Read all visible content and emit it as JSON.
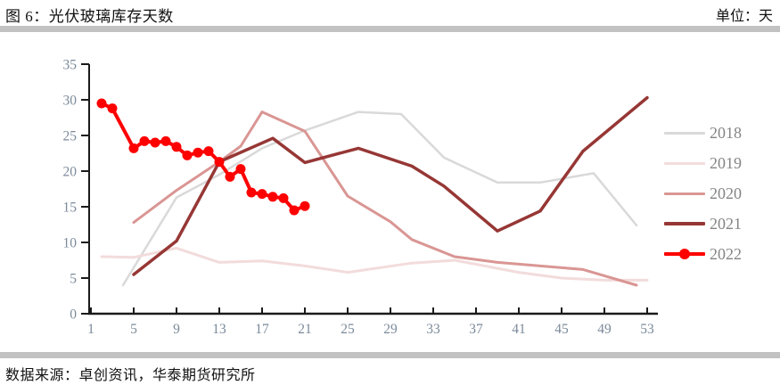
{
  "header": {
    "title": "图 6：光伏玻璃库存天数",
    "unit": "单位：天"
  },
  "footer": {
    "source": "数据来源：卓创资讯，华泰期货研究所"
  },
  "colors": {
    "divider": "#c2c2c2",
    "axis": "#1a1a1a",
    "axis_tick_label": "#7b8a9a",
    "legend_label": "#848484"
  },
  "chart_data": {
    "type": "line",
    "title": "光伏玻璃库存天数",
    "xlabel": "",
    "ylabel": "天",
    "x_axis": {
      "range": [
        1,
        53
      ],
      "tick_labels": [
        1,
        5,
        9,
        13,
        17,
        21,
        25,
        29,
        33,
        37,
        41,
        45,
        49,
        53
      ]
    },
    "y_axis": {
      "range": [
        0,
        35
      ],
      "tick_labels": [
        0,
        5,
        10,
        15,
        20,
        25,
        30,
        35
      ]
    },
    "grid": false,
    "legend_position": "right",
    "series": [
      {
        "name": "2018",
        "color": "#d9d9d9",
        "width": 2.5,
        "marker": false,
        "x": [
          4,
          9,
          13,
          17,
          21,
          26,
          30,
          34,
          39,
          43,
          48,
          52
        ],
        "values": [
          4.0,
          16.3,
          19.5,
          23.2,
          25.7,
          28.3,
          28.0,
          21.9,
          18.4,
          18.4,
          19.7,
          12.4
        ]
      },
      {
        "name": "2019",
        "color": "#f2dcdb",
        "width": 3,
        "marker": false,
        "x": [
          2,
          5,
          9,
          13,
          17,
          21,
          25,
          31,
          35,
          41,
          45,
          49,
          53
        ],
        "values": [
          8.0,
          7.9,
          9.2,
          7.2,
          7.4,
          6.7,
          5.8,
          7.1,
          7.5,
          5.8,
          5.0,
          4.7,
          4.7
        ]
      },
      {
        "name": "2020",
        "color": "#d99694",
        "width": 3,
        "marker": false,
        "x": [
          5,
          9,
          13,
          15,
          17,
          21,
          25,
          29,
          31,
          35,
          39,
          43,
          47,
          52
        ],
        "values": [
          12.8,
          17.3,
          21.3,
          23.5,
          28.3,
          25.6,
          16.5,
          12.9,
          10.4,
          8.0,
          7.2,
          6.7,
          6.2,
          4.0
        ]
      },
      {
        "name": "2021",
        "color": "#963735",
        "width": 3.5,
        "marker": false,
        "x": [
          5,
          9,
          13,
          18,
          21,
          26,
          31,
          34,
          39,
          43,
          47,
          53
        ],
        "values": [
          5.5,
          10.2,
          21.3,
          24.6,
          21.2,
          23.2,
          20.7,
          17.9,
          11.6,
          14.4,
          22.8,
          30.3
        ]
      },
      {
        "name": "2022",
        "color": "#fe0000",
        "width": 4,
        "marker": true,
        "marker_radius": 5.5,
        "x": [
          2,
          3,
          5,
          6,
          7,
          8,
          9,
          10,
          11,
          12,
          13,
          14,
          15,
          16,
          17,
          18,
          19,
          20,
          21
        ],
        "values": [
          29.5,
          28.8,
          23.2,
          24.2,
          24.0,
          24.2,
          23.4,
          22.2,
          22.6,
          22.8,
          21.3,
          19.2,
          20.3,
          17.0,
          16.8,
          16.4,
          16.2,
          14.5,
          15.1
        ]
      }
    ]
  }
}
